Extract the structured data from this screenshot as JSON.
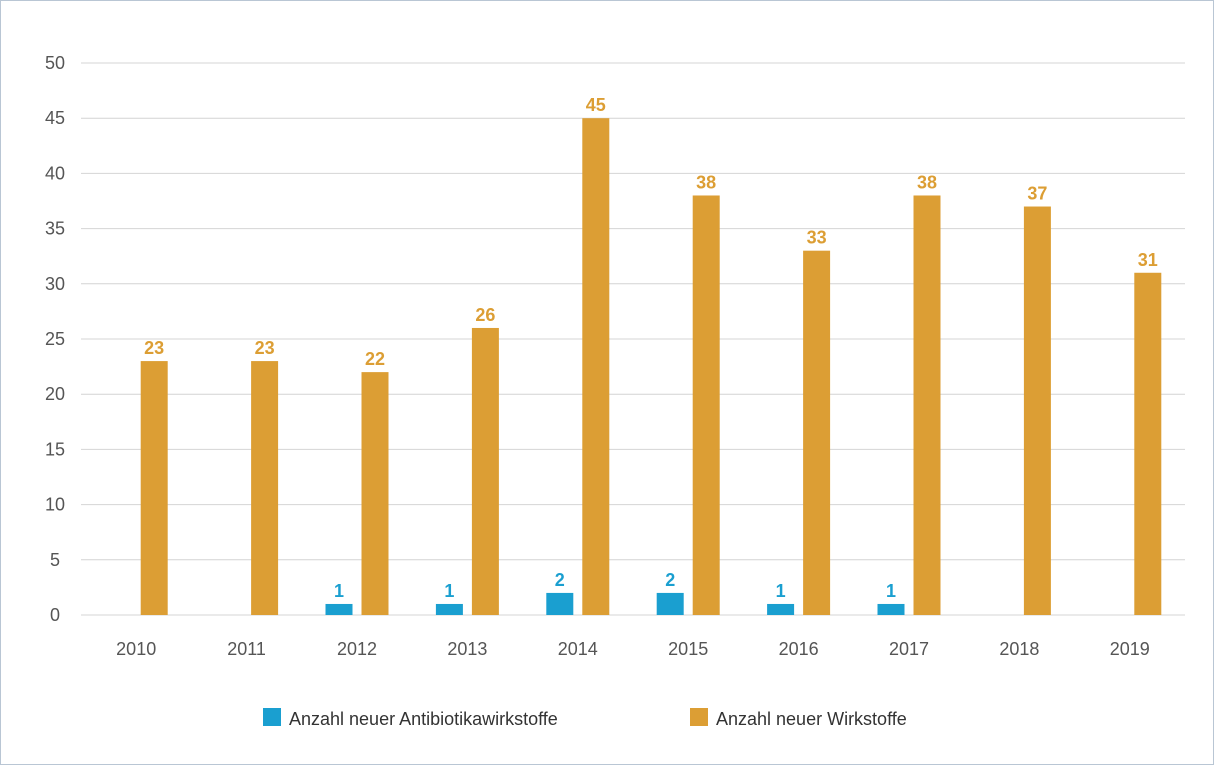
{
  "chart_data": {
    "type": "bar",
    "categories": [
      "2010",
      "2011",
      "2012",
      "2013",
      "2014",
      "2015",
      "2016",
      "2017",
      "2018",
      "2019"
    ],
    "series": [
      {
        "name": "Anzahl neuer Antibiotikawirkstoffe",
        "color": "#1a9fd0",
        "values": [
          0,
          0,
          1,
          1,
          2,
          2,
          1,
          1,
          0,
          0
        ],
        "labels": [
          "",
          "",
          "1",
          "1",
          "2",
          "2",
          "1",
          "1",
          "",
          ""
        ]
      },
      {
        "name": "Anzahl neuer Wirkstoffe",
        "color": "#dc9e34",
        "values": [
          23,
          23,
          22,
          26,
          45,
          38,
          33,
          38,
          37,
          31
        ],
        "labels": [
          "23",
          "23",
          "22",
          "26",
          "45",
          "38",
          "33",
          "38",
          "37",
          "31"
        ]
      }
    ],
    "title": "",
    "xlabel": "",
    "ylabel": "",
    "ylim": [
      0,
      50
    ],
    "yticks": [
      "0",
      "5",
      "10",
      "15",
      "20",
      "25",
      "30",
      "35",
      "40",
      "45",
      "50"
    ],
    "grid": true,
    "legend_position": "bottom"
  }
}
